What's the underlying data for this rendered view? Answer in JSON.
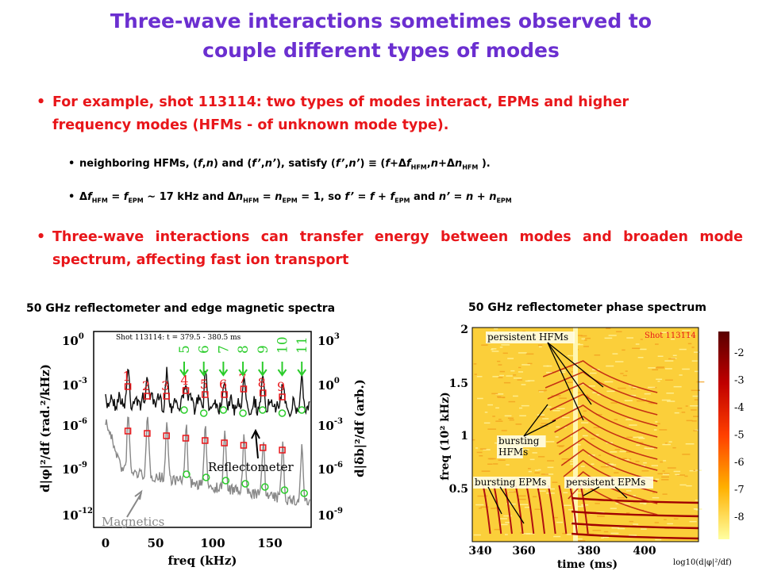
{
  "title": [
    "Three-wave interactions sometimes observed to",
    "couple different types of modes"
  ],
  "bullets": [
    {
      "text": "For example, shot 113114: two types of modes interact, EPMs and higher frequency modes (HFMs - of unknown mode type).",
      "sub": [
        {
          "parts": [
            "neighboring HFMs, (",
            "f",
            ",",
            "n",
            ") and (",
            "f’",
            ",",
            "n’",
            "), satisfy (",
            "f’",
            ",",
            "n’",
            ") ≡ (",
            "f",
            "+Δ",
            "f",
            "HFM",
            ",",
            "n",
            "+Δ",
            "n",
            "HFM",
            " )."
          ]
        },
        {
          "parts": [
            "Δ",
            "f",
            "HFM",
            " = ",
            "f",
            "EPM",
            " ~ 17 kHz and Δ",
            "n",
            "HFM",
            " = ",
            "n",
            "EPM",
            " = 1, so ",
            "f’",
            " = ",
            "f",
            " + ",
            "f",
            "EPM",
            " and ",
            "n’",
            " = ",
            "n",
            " + ",
            "n",
            "EPM"
          ]
        }
      ]
    },
    {
      "text": "Three-wave interactions can transfer energy between modes and broaden mode spectrum, affecting fast ion transport"
    }
  ],
  "figures": [
    {
      "caption": "50 GHz reflectometer and edge magnetic spectra",
      "shot": "Shot 113114: t = 379.5 - 380.5 ms",
      "yticks": [
        {
          "base": "10",
          "exp": "0"
        },
        {
          "base": "10",
          "exp": "-3"
        },
        {
          "base": "10",
          "exp": "-6"
        },
        {
          "base": "10",
          "exp": "-9"
        },
        {
          "base": "10",
          "exp": "-12"
        }
      ],
      "y2ticks": [
        {
          "base": "10",
          "exp": "3"
        },
        {
          "base": "10",
          "exp": "0"
        },
        {
          "base": "10",
          "exp": "-3"
        },
        {
          "base": "10",
          "exp": "-6"
        },
        {
          "base": "10",
          "exp": "-9"
        }
      ],
      "xticks": [
        "0",
        "50",
        "100",
        "150"
      ],
      "xlabel": "freq (kHz)",
      "ylabel": "d|φ|²/df (rad.²/kHz)",
      "y2label": "d|δb|²/df (arb.)",
      "reflectometer_labels": [
        "1",
        "2",
        "3",
        "4",
        "5",
        "6",
        "7",
        "8",
        "9"
      ],
      "magnetics_labels": [
        "5",
        "6",
        "7",
        "8",
        "9",
        "10",
        "11"
      ],
      "annotations": [
        "Reflectometer",
        "Magnetics"
      ]
    },
    {
      "caption": "50 GHz reflectometer phase spectrum",
      "shot": "Shot 113114",
      "yticks": [
        "0.5",
        "1",
        "1.5",
        "2"
      ],
      "xticks": [
        "340",
        "360",
        "380",
        "400"
      ],
      "xlabel": "time (ms)",
      "ylabel": "freq (10² kHz)",
      "colorbar_ticks": [
        "-2",
        "-3",
        "-4",
        "-5",
        "-6",
        "-7",
        "-8"
      ],
      "colorbar_label": "log10(d|φ|²/df)",
      "annotations": [
        [
          "persistent HFMs"
        ],
        [
          "bursting",
          "HFMs"
        ],
        [
          "bursting EPMs"
        ],
        [
          "persistent EPMs"
        ]
      ]
    }
  ]
}
